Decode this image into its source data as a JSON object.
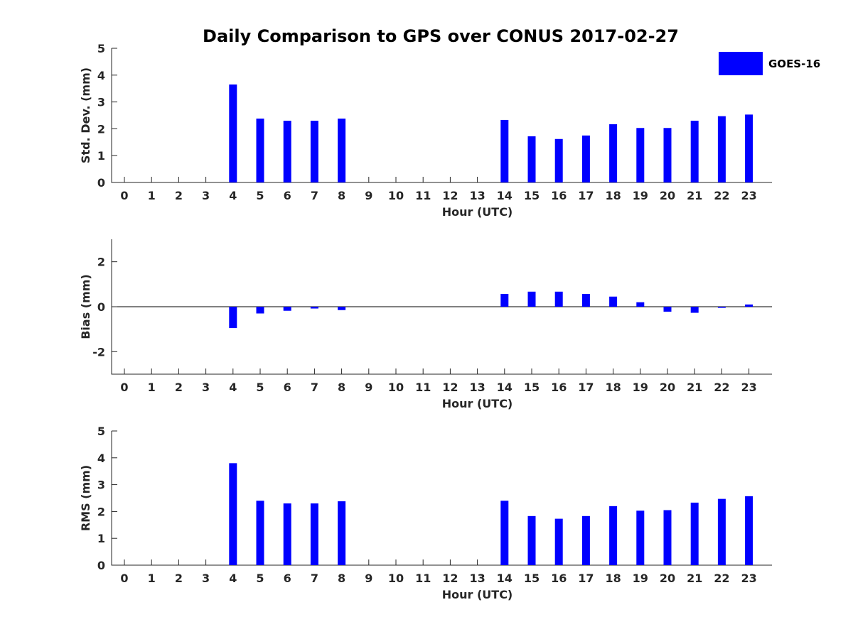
{
  "chart_data": {
    "title": "Daily Comparison to GPS over CONUS 2017-02-27",
    "legend": {
      "label": "GOES-16",
      "color": "#0000ff",
      "placement": "top-right"
    },
    "bar_color": "#0000ff",
    "categories": [
      "0",
      "1",
      "2",
      "3",
      "4",
      "5",
      "6",
      "7",
      "8",
      "9",
      "10",
      "11",
      "12",
      "13",
      "14",
      "15",
      "16",
      "17",
      "18",
      "19",
      "20",
      "21",
      "22",
      "23"
    ],
    "panels": [
      {
        "type": "bar",
        "ylabel": "Std. Dev. (mm)",
        "xlabel": "Hour (UTC)",
        "ylim": [
          0,
          5
        ],
        "yticks": [
          0,
          1,
          2,
          3,
          4,
          5
        ],
        "values": [
          null,
          null,
          null,
          null,
          3.65,
          2.38,
          2.3,
          2.3,
          2.38,
          null,
          null,
          null,
          null,
          null,
          2.33,
          1.72,
          1.62,
          1.75,
          2.17,
          2.03,
          2.03,
          2.3,
          2.47,
          2.53
        ]
      },
      {
        "type": "bar",
        "ylabel": "Bias (mm)",
        "xlabel": "Hour (UTC)",
        "ylim": [
          -3,
          3
        ],
        "yticks": [
          -2,
          0,
          2
        ],
        "values": [
          null,
          null,
          null,
          null,
          -0.95,
          -0.3,
          -0.18,
          -0.08,
          -0.15,
          null,
          null,
          null,
          null,
          null,
          0.57,
          0.67,
          0.67,
          0.57,
          0.45,
          0.2,
          -0.22,
          -0.27,
          -0.05,
          0.1
        ]
      },
      {
        "type": "bar",
        "ylabel": "RMS (mm)",
        "xlabel": "Hour (UTC)",
        "ylim": [
          0,
          5
        ],
        "yticks": [
          0,
          1,
          2,
          3,
          4,
          5
        ],
        "values": [
          null,
          null,
          null,
          null,
          3.8,
          2.4,
          2.3,
          2.3,
          2.38,
          null,
          null,
          null,
          null,
          null,
          2.4,
          1.83,
          1.73,
          1.83,
          2.2,
          2.03,
          2.05,
          2.33,
          2.47,
          2.57
        ]
      }
    ]
  }
}
